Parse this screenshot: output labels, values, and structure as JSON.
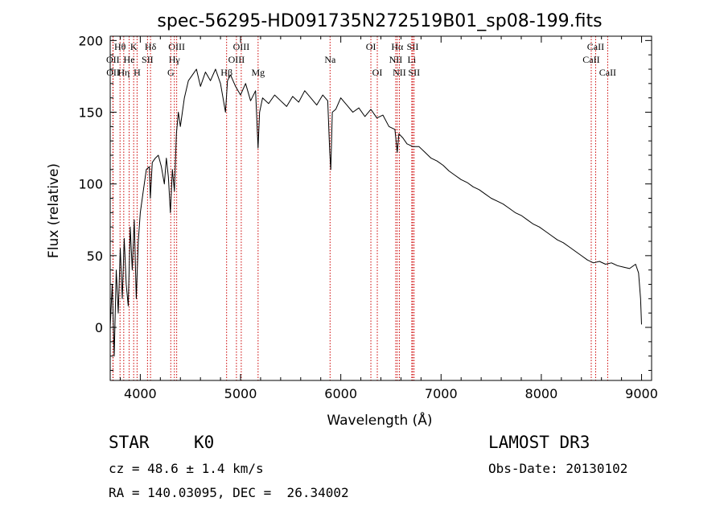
{
  "chart_data": {
    "type": "line",
    "title": "spec-56295-HD091735N272519B01_sp08-199.fits",
    "xlabel": "Wavelength (Å)",
    "ylabel": "Flux (relative)",
    "xlim": [
      3700,
      9100
    ],
    "ylim": [
      -37,
      203
    ],
    "xticks": [
      4000,
      5000,
      6000,
      7000,
      8000,
      9000
    ],
    "xtick_labels": [
      "4000",
      "5000",
      "6000",
      "7000",
      "8000",
      "9000"
    ],
    "yticks": [
      0,
      50,
      100,
      150,
      200
    ],
    "ytick_labels": [
      "0",
      "50",
      "100",
      "150",
      "200"
    ],
    "x_minor_step": 200,
    "y_minor_step": 10,
    "series": [
      {
        "name": "spectrum",
        "points": [
          [
            3700,
            0
          ],
          [
            3720,
            30
          ],
          [
            3740,
            -20
          ],
          [
            3760,
            40
          ],
          [
            3780,
            10
          ],
          [
            3800,
            55
          ],
          [
            3820,
            20
          ],
          [
            3840,
            62
          ],
          [
            3860,
            30
          ],
          [
            3880,
            15
          ],
          [
            3900,
            70
          ],
          [
            3920,
            40
          ],
          [
            3940,
            75
          ],
          [
            3960,
            20
          ],
          [
            3980,
            60
          ],
          [
            4000,
            80
          ],
          [
            4030,
            95
          ],
          [
            4060,
            110
          ],
          [
            4090,
            112
          ],
          [
            4100,
            90
          ],
          [
            4120,
            115
          ],
          [
            4150,
            118
          ],
          [
            4180,
            120
          ],
          [
            4210,
            112
          ],
          [
            4240,
            100
          ],
          [
            4260,
            118
          ],
          [
            4280,
            105
          ],
          [
            4300,
            80
          ],
          [
            4320,
            110
          ],
          [
            4340,
            95
          ],
          [
            4360,
            135
          ],
          [
            4380,
            150
          ],
          [
            4400,
            140
          ],
          [
            4420,
            150
          ],
          [
            4440,
            160
          ],
          [
            4480,
            172
          ],
          [
            4520,
            176
          ],
          [
            4560,
            180
          ],
          [
            4600,
            168
          ],
          [
            4650,
            178
          ],
          [
            4700,
            172
          ],
          [
            4750,
            180
          ],
          [
            4800,
            170
          ],
          [
            4850,
            150
          ],
          [
            4870,
            172
          ],
          [
            4900,
            176
          ],
          [
            4950,
            168
          ],
          [
            5000,
            162
          ],
          [
            5050,
            170
          ],
          [
            5100,
            158
          ],
          [
            5150,
            165
          ],
          [
            5175,
            125
          ],
          [
            5190,
            150
          ],
          [
            5220,
            160
          ],
          [
            5280,
            156
          ],
          [
            5340,
            162
          ],
          [
            5400,
            158
          ],
          [
            5460,
            154
          ],
          [
            5520,
            161
          ],
          [
            5580,
            157
          ],
          [
            5640,
            165
          ],
          [
            5700,
            160
          ],
          [
            5760,
            155
          ],
          [
            5820,
            162
          ],
          [
            5870,
            158
          ],
          [
            5890,
            122
          ],
          [
            5900,
            110
          ],
          [
            5915,
            150
          ],
          [
            5950,
            152
          ],
          [
            6000,
            160
          ],
          [
            6060,
            155
          ],
          [
            6120,
            150
          ],
          [
            6180,
            153
          ],
          [
            6240,
            147
          ],
          [
            6300,
            152
          ],
          [
            6360,
            146
          ],
          [
            6420,
            148
          ],
          [
            6480,
            140
          ],
          [
            6540,
            138
          ],
          [
            6563,
            122
          ],
          [
            6580,
            135
          ],
          [
            6620,
            132
          ],
          [
            6660,
            128
          ],
          [
            6720,
            126
          ],
          [
            6780,
            126
          ],
          [
            6840,
            122
          ],
          [
            6900,
            118
          ],
          [
            6960,
            116
          ],
          [
            7020,
            113
          ],
          [
            7080,
            109
          ],
          [
            7140,
            106
          ],
          [
            7200,
            103
          ],
          [
            7260,
            101
          ],
          [
            7320,
            98
          ],
          [
            7380,
            96
          ],
          [
            7440,
            93
          ],
          [
            7500,
            90
          ],
          [
            7560,
            88
          ],
          [
            7620,
            86
          ],
          [
            7680,
            83
          ],
          [
            7740,
            80
          ],
          [
            7800,
            78
          ],
          [
            7860,
            75
          ],
          [
            7920,
            72
          ],
          [
            7980,
            70
          ],
          [
            8040,
            67
          ],
          [
            8100,
            64
          ],
          [
            8160,
            61
          ],
          [
            8220,
            59
          ],
          [
            8280,
            56
          ],
          [
            8340,
            53
          ],
          [
            8400,
            50
          ],
          [
            8460,
            47
          ],
          [
            8520,
            45
          ],
          [
            8580,
            46
          ],
          [
            8640,
            44
          ],
          [
            8700,
            45
          ],
          [
            8760,
            43
          ],
          [
            8820,
            42
          ],
          [
            8880,
            41
          ],
          [
            8940,
            44
          ],
          [
            8970,
            38
          ],
          [
            8990,
            20
          ],
          [
            9000,
            2
          ]
        ]
      }
    ],
    "spectral_lines": [
      {
        "label": "Hθ",
        "wavelength": 3798,
        "row": 1
      },
      {
        "label": "OII",
        "wavelength": 3727,
        "row": 2
      },
      {
        "label": "OII",
        "wavelength": 3729,
        "row": 3
      },
      {
        "label": "K",
        "wavelength": 3934,
        "row": 1
      },
      {
        "label": "He",
        "wavelength": 3889,
        "row": 2
      },
      {
        "label": "Hη",
        "wavelength": 3835,
        "row": 3
      },
      {
        "label": "Hδ",
        "wavelength": 4102,
        "row": 1
      },
      {
        "label": "SII",
        "wavelength": 4072,
        "row": 2
      },
      {
        "label": "H",
        "wavelength": 3968,
        "row": 3
      },
      {
        "label": "OIII",
        "wavelength": 4363,
        "row": 1
      },
      {
        "label": "Hγ",
        "wavelength": 4340,
        "row": 2
      },
      {
        "label": "G",
        "wavelength": 4304,
        "row": 3
      },
      {
        "label": "OIII",
        "wavelength": 5007,
        "row": 1
      },
      {
        "label": "OIII",
        "wavelength": 4959,
        "row": 2
      },
      {
        "label": "Hβ",
        "wavelength": 4861,
        "row": 3
      },
      {
        "label": "Mg",
        "wavelength": 5175,
        "row": 3
      },
      {
        "label": "Na",
        "wavelength": 5893,
        "row": 2
      },
      {
        "label": "OI",
        "wavelength": 6300,
        "row": 1
      },
      {
        "label": "OI",
        "wavelength": 6364,
        "row": 3
      },
      {
        "label": "Hα",
        "wavelength": 6563,
        "row": 1
      },
      {
        "label": "NII",
        "wavelength": 6548,
        "row": 2
      },
      {
        "label": "NII",
        "wavelength": 6584,
        "row": 3
      },
      {
        "label": "SII",
        "wavelength": 6717,
        "row": 1
      },
      {
        "label": "Li",
        "wavelength": 6708,
        "row": 2
      },
      {
        "label": "SII",
        "wavelength": 6731,
        "row": 3
      },
      {
        "label": "CaII",
        "wavelength": 8542,
        "row": 1
      },
      {
        "label": "CaII",
        "wavelength": 8498,
        "row": 2
      },
      {
        "label": "CaII",
        "wavelength": 8662,
        "row": 3
      }
    ]
  },
  "info": {
    "class_label": "STAR",
    "subclass_label": "K0",
    "survey_label": "LAMOST DR3",
    "cz_text": "cz = 48.6 ± 1.4 km/s",
    "obs_date_text": "Obs-Date: 20130102",
    "coords_text": "RA = 140.03095, DEC =  26.34002"
  }
}
